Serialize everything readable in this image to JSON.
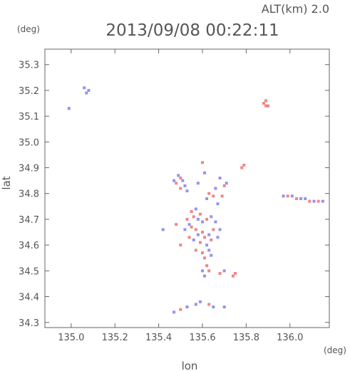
{
  "chart_data": {
    "type": "scatter",
    "title": "2013/09/08 00:22:11",
    "subtitle": "ALT(km) 2.0",
    "xlabel": "lon",
    "ylabel": "lat",
    "xunit": "(deg)",
    "yunit": "(deg)",
    "xlim": [
      134.88,
      136.18
    ],
    "ylim": [
      34.28,
      35.36
    ],
    "xticks": [
      "135.0",
      "135.2",
      "135.4",
      "135.6",
      "135.8",
      "136.0"
    ],
    "yticks": [
      "34.3",
      "34.4",
      "34.5",
      "34.6",
      "34.7",
      "34.8",
      "34.9",
      "35.0",
      "35.1",
      "35.2",
      "35.3"
    ],
    "grid": false,
    "colors": {
      "positive": "#f07070",
      "negative": "#7f7ff0"
    },
    "points": [
      [
        135.06,
        35.21,
        -1
      ],
      [
        135.08,
        35.2,
        -1
      ],
      [
        135.07,
        35.19,
        -1
      ],
      [
        134.99,
        35.13,
        -1
      ],
      [
        135.88,
        35.15,
        1
      ],
      [
        135.89,
        35.16,
        1
      ],
      [
        135.9,
        35.14,
        1
      ],
      [
        135.89,
        35.14,
        1
      ],
      [
        135.49,
        34.87,
        -1
      ],
      [
        135.5,
        34.86,
        1
      ],
      [
        135.51,
        34.85,
        -1
      ],
      [
        135.48,
        34.84,
        1
      ],
      [
        135.52,
        34.83,
        -1
      ],
      [
        135.47,
        34.85,
        -1
      ],
      [
        135.5,
        34.82,
        1
      ],
      [
        135.53,
        34.81,
        -1
      ],
      [
        135.6,
        34.92,
        1
      ],
      [
        135.61,
        34.88,
        -1
      ],
      [
        135.58,
        34.84,
        -1
      ],
      [
        135.63,
        34.8,
        1
      ],
      [
        135.62,
        34.78,
        -1
      ],
      [
        135.65,
        34.79,
        1
      ],
      [
        135.66,
        34.82,
        -1
      ],
      [
        135.68,
        34.86,
        -1
      ],
      [
        135.69,
        34.79,
        1
      ],
      [
        135.7,
        34.83,
        1
      ],
      [
        135.67,
        34.76,
        -1
      ],
      [
        135.71,
        34.84,
        -1
      ],
      [
        135.78,
        34.9,
        1
      ],
      [
        135.79,
        34.91,
        1
      ],
      [
        135.97,
        34.79,
        -1
      ],
      [
        135.99,
        34.79,
        1
      ],
      [
        136.01,
        34.79,
        -1
      ],
      [
        136.03,
        34.78,
        1
      ],
      [
        136.05,
        34.78,
        -1
      ],
      [
        136.07,
        34.78,
        -1
      ],
      [
        136.09,
        34.77,
        1
      ],
      [
        136.11,
        34.77,
        -1
      ],
      [
        136.13,
        34.77,
        1
      ],
      [
        136.15,
        34.77,
        -1
      ],
      [
        135.55,
        34.73,
        1
      ],
      [
        135.57,
        34.74,
        -1
      ],
      [
        135.56,
        34.71,
        1
      ],
      [
        135.58,
        34.7,
        -1
      ],
      [
        135.59,
        34.72,
        1
      ],
      [
        135.54,
        34.68,
        -1
      ],
      [
        135.55,
        34.67,
        1
      ],
      [
        135.6,
        34.69,
        -1
      ],
      [
        135.62,
        34.7,
        1
      ],
      [
        135.64,
        34.71,
        -1
      ],
      [
        135.66,
        34.69,
        -1
      ],
      [
        135.57,
        34.66,
        1
      ],
      [
        135.58,
        34.64,
        -1
      ],
      [
        135.6,
        34.65,
        1
      ],
      [
        135.61,
        34.63,
        1
      ],
      [
        135.63,
        34.64,
        -1
      ],
      [
        135.65,
        34.66,
        1
      ],
      [
        135.56,
        34.62,
        -1
      ],
      [
        135.59,
        34.61,
        1
      ],
      [
        135.62,
        34.6,
        -1
      ],
      [
        135.64,
        34.62,
        1
      ],
      [
        135.67,
        34.63,
        -1
      ],
      [
        135.68,
        34.66,
        -1
      ],
      [
        135.57,
        34.58,
        1
      ],
      [
        135.6,
        34.57,
        1
      ],
      [
        135.63,
        34.58,
        -1
      ],
      [
        135.61,
        34.55,
        1
      ],
      [
        135.64,
        34.56,
        -1
      ],
      [
        135.62,
        34.52,
        1
      ],
      [
        135.6,
        34.5,
        -1
      ],
      [
        135.63,
        34.5,
        1
      ],
      [
        135.61,
        34.48,
        -1
      ],
      [
        135.53,
        34.7,
        1
      ],
      [
        135.52,
        34.66,
        -1
      ],
      [
        135.54,
        34.63,
        1
      ],
      [
        135.5,
        34.6,
        1
      ],
      [
        135.48,
        34.68,
        1
      ],
      [
        135.42,
        34.66,
        -1
      ],
      [
        135.68,
        34.49,
        1
      ],
      [
        135.7,
        34.5,
        -1
      ],
      [
        135.74,
        34.48,
        1
      ],
      [
        135.75,
        34.49,
        1
      ],
      [
        135.47,
        34.34,
        -1
      ],
      [
        135.5,
        34.35,
        1
      ],
      [
        135.53,
        34.36,
        -1
      ],
      [
        135.57,
        34.37,
        -1
      ],
      [
        135.59,
        34.38,
        -1
      ],
      [
        135.63,
        34.37,
        1
      ],
      [
        135.65,
        34.36,
        -1
      ],
      [
        135.7,
        34.36,
        -1
      ]
    ]
  }
}
